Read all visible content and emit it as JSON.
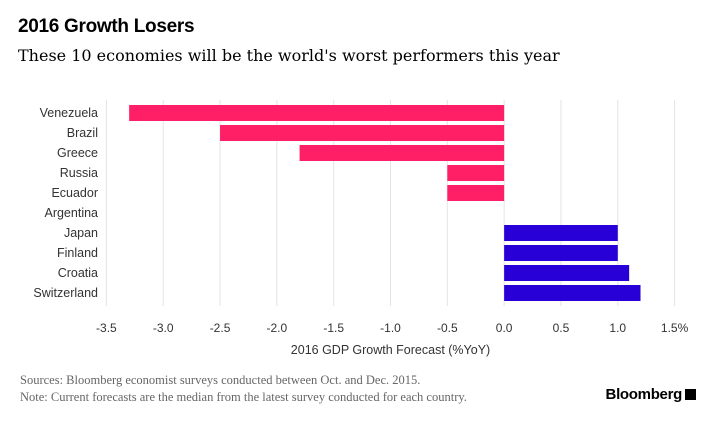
{
  "header": {
    "title": "2016 Growth Losers",
    "subtitle": "These 10 economies will be the world's worst performers this year"
  },
  "footer": {
    "source": "Sources: Bloomberg economist surveys conducted between Oct. and Dec. 2015.",
    "note": "Note: Current forecasts are the median from the latest survey conducted for each country.",
    "brand": "Bloomberg"
  },
  "chart_data": {
    "type": "bar",
    "orientation": "horizontal",
    "title": "2016 Growth Losers",
    "subtitle": "These 10 economies will be the world's worst performers this year",
    "xlabel": "2016 GDP Growth Forecast (%YoY)",
    "ylabel": "",
    "categories": [
      "Venezuela",
      "Brazil",
      "Greece",
      "Russia",
      "Ecuador",
      "Argentina",
      "Japan",
      "Finland",
      "Croatia",
      "Switzerland"
    ],
    "values": [
      -3.3,
      -2.5,
      -1.8,
      -0.5,
      -0.5,
      0.0,
      1.0,
      1.0,
      1.1,
      1.2
    ],
    "xlim": [
      -3.5,
      1.5
    ],
    "xticks": [
      "-3.5",
      "-3.0",
      "-2.5",
      "-2.0",
      "-1.5",
      "-1.0",
      "-0.5",
      "0.0",
      "0.5",
      "1.0",
      "1.5%"
    ],
    "grid": "vertical",
    "colors": {
      "negative": "#FF1F66",
      "positive": "#2800D7",
      "grid": "#E3E3EA"
    }
  }
}
